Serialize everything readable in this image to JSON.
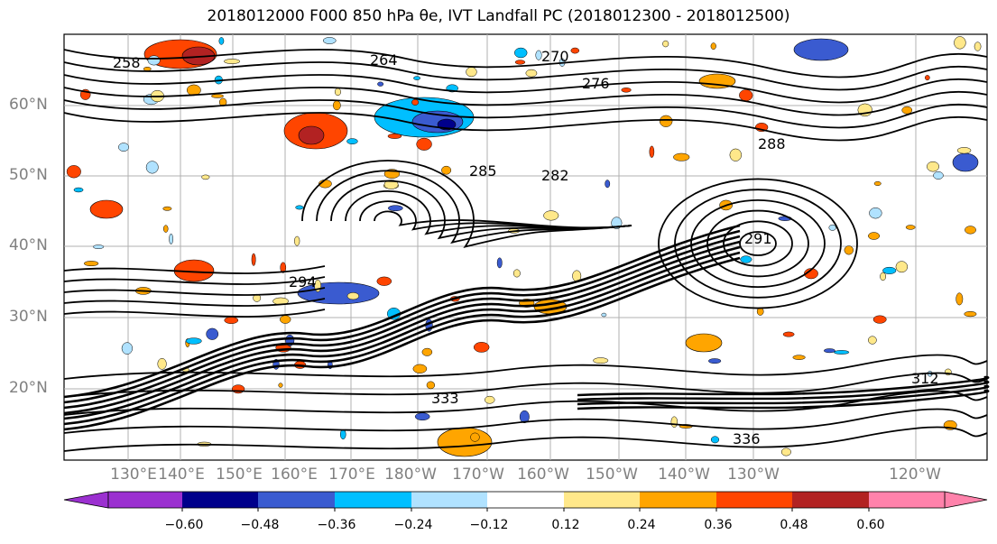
{
  "title": "2018012000 F000 850 hPa θe, IVT Landfall PC (2018012300 - 2018012500)",
  "lat_labels": [
    "60°N",
    "50°N",
    "40°N",
    "30°N",
    "20°N"
  ],
  "lon_labels": [
    "130°E",
    "140°E",
    "150°E",
    "160°E",
    "170°E",
    "180°W",
    "170°W",
    "160°W",
    "150°W",
    "140°W",
    "130°W",
    "120°W"
  ],
  "contour_labels": [
    "258",
    "264",
    "270",
    "276",
    "282",
    "285",
    "288",
    "291",
    "294",
    "312",
    "333",
    "336"
  ],
  "colorbar": {
    "colors": [
      "#9b30d0",
      "#00008b",
      "#3a5bd0",
      "#00bfff",
      "#b0e2ff",
      "#ffffff",
      "#ffe88a",
      "#ffa500",
      "#ff4500",
      "#b22222",
      "#ff82ab"
    ],
    "tick_labels": [
      "−0.60",
      "−0.48",
      "−0.36",
      "−0.24",
      "−0.12",
      "0.12",
      "0.24",
      "0.36",
      "0.48",
      "0.60"
    ]
  }
}
